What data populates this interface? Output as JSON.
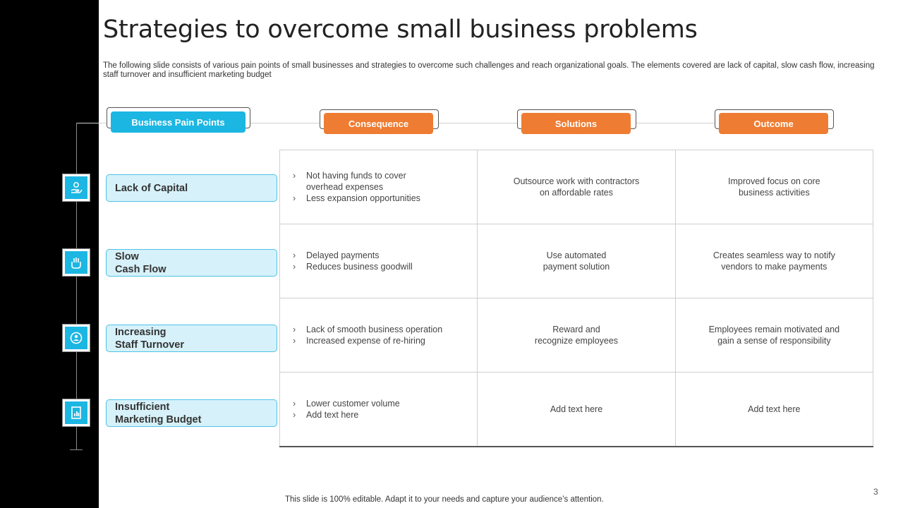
{
  "title": "Strategies to overcome small business problems",
  "subtitle": "The following slide consists of various pain points of small businesses and strategies to overcome such challenges and reach organizational goals. The elements covered are lack of capital, slow cash flow, increasing staff turnover and insufficient marketing budget",
  "headers": {
    "pain_points": "Business Pain Points",
    "consequence": "Consequence",
    "solutions": "Solutions",
    "outcome": "Outcome"
  },
  "colors": {
    "cyan": "#1cb6e2",
    "orange": "#ee7c32",
    "pain_fill": "#d6f1f9"
  },
  "rows": [
    {
      "icon": "money-hand-icon",
      "pain_lines": [
        "Lack of Capital"
      ],
      "consequence": [
        "Not having funds to cover overhead expenses",
        "Less expansion opportunities"
      ],
      "solution_lines": [
        "Outsource work with contractors",
        "on affordable rates"
      ],
      "outcome_lines": [
        "Improved focus on core",
        "business activities"
      ]
    },
    {
      "icon": "cash-flow-hand-icon",
      "pain_lines": [
        "Slow",
        "Cash Flow"
      ],
      "consequence": [
        "Delayed payments",
        "Reduces business goodwill"
      ],
      "solution_lines": [
        "Use automated",
        "payment solution"
      ],
      "outcome_lines": [
        "Creates seamless way to notify",
        "vendors to make payments"
      ]
    },
    {
      "icon": "staff-turnover-icon",
      "pain_lines": [
        "Increasing",
        "Staff Turnover"
      ],
      "consequence": [
        "Lack of smooth business operation",
        "Increased expense of re-hiring"
      ],
      "solution_lines": [
        "Reward and",
        "recognize employees"
      ],
      "outcome_lines": [
        "Employees remain motivated and",
        "gain a sense of responsibility"
      ]
    },
    {
      "icon": "marketing-report-icon",
      "pain_lines": [
        "Insufficient",
        "Marketing Budget"
      ],
      "consequence": [
        "Lower customer volume",
        "Add text here"
      ],
      "solution_lines": [
        "Add text here"
      ],
      "outcome_lines": [
        "Add text here"
      ]
    }
  ],
  "footer": "This slide is 100% editable. Adapt it to your needs and capture your audience’s attention.",
  "page_number": "3"
}
